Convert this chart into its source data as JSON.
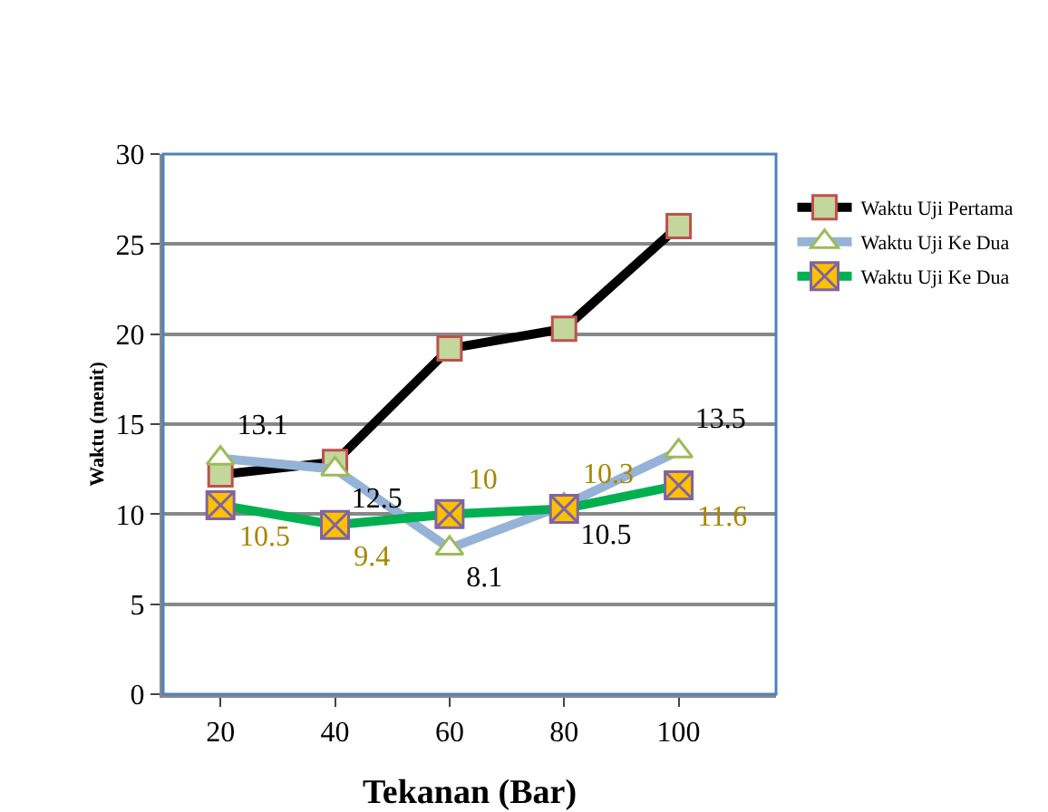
{
  "chart_data": {
    "type": "line",
    "xlabel": "Tekanan (Bar)",
    "ylabel": "Waktu (menit)",
    "categories": [
      "20",
      "40",
      "60",
      "80",
      "100"
    ],
    "ylim": [
      0,
      30
    ],
    "yticks": [
      0,
      5,
      10,
      15,
      20,
      25,
      30
    ],
    "grid": "y",
    "legend": "right",
    "series": [
      {
        "name": "Waktu Uji Pertama",
        "color": "#000000",
        "marker": "square",
        "values": [
          12.2,
          12.9,
          19.2,
          20.3,
          26
        ]
      },
      {
        "name": "Waktu Uji Ke Dua",
        "color": "#95b3d7",
        "marker": "triangle",
        "values": [
          13.1,
          12.5,
          8.1,
          10.5,
          13.5
        ],
        "value_labels": [
          "13.1",
          "12.5",
          "8.1",
          "10.5",
          "13.5"
        ]
      },
      {
        "name": "Waktu Uji Ke Dua",
        "color": "#00b050",
        "marker": "cross",
        "values": [
          10.5,
          9.4,
          10,
          10.3,
          11.6
        ],
        "value_labels": [
          "10.5",
          "9.4",
          "10",
          "10.3",
          "11.6"
        ]
      }
    ]
  }
}
